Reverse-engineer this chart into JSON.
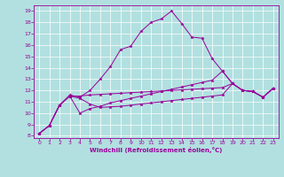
{
  "xlabel": "Windchill (Refroidissement éolien,°C)",
  "background_color": "#b2e0e0",
  "line_color": "#990099",
  "xlim": [
    -0.5,
    23.5
  ],
  "ylim": [
    7.8,
    19.5
  ],
  "yticks": [
    8,
    9,
    10,
    11,
    12,
    13,
    14,
    15,
    16,
    17,
    18,
    19
  ],
  "xticks": [
    0,
    1,
    2,
    3,
    4,
    5,
    6,
    7,
    8,
    9,
    10,
    11,
    12,
    13,
    14,
    15,
    16,
    17,
    18,
    19,
    20,
    21,
    22,
    23
  ],
  "series": [
    {
      "x": [
        0,
        1,
        2,
        3,
        4,
        5,
        6,
        7,
        8,
        9,
        10,
        11,
        12,
        13,
        14,
        15,
        16,
        17,
        18,
        19,
        20,
        21,
        22,
        23
      ],
      "y": [
        8.2,
        8.9,
        10.7,
        11.6,
        11.4,
        12.0,
        13.0,
        14.1,
        15.6,
        15.9,
        17.2,
        18.0,
        18.3,
        19.0,
        17.9,
        16.7,
        16.6,
        14.8,
        13.7,
        12.6,
        12.0,
        11.9,
        11.4,
        12.2
      ]
    },
    {
      "x": [
        0,
        1,
        2,
        3,
        4,
        5,
        6,
        7,
        8,
        9,
        10,
        11,
        12,
        13,
        14,
        15,
        16,
        17,
        18,
        19,
        20,
        21,
        22,
        23
      ],
      "y": [
        8.2,
        8.9,
        10.7,
        11.5,
        10.0,
        10.4,
        10.6,
        10.9,
        11.1,
        11.3,
        11.5,
        11.7,
        11.9,
        12.1,
        12.3,
        12.5,
        12.7,
        12.9,
        13.7,
        12.6,
        12.0,
        11.9,
        11.4,
        12.2
      ]
    },
    {
      "x": [
        0,
        1,
        2,
        3,
        4,
        5,
        6,
        7,
        8,
        9,
        10,
        11,
        12,
        13,
        14,
        15,
        16,
        17,
        18,
        19,
        20,
        21,
        22,
        23
      ],
      "y": [
        8.2,
        8.9,
        10.7,
        11.5,
        11.5,
        11.6,
        11.65,
        11.7,
        11.75,
        11.8,
        11.85,
        11.9,
        11.95,
        12.0,
        12.05,
        12.1,
        12.15,
        12.2,
        12.25,
        12.6,
        12.0,
        11.9,
        11.4,
        12.2
      ]
    },
    {
      "x": [
        0,
        1,
        2,
        3,
        4,
        5,
        6,
        7,
        8,
        9,
        10,
        11,
        12,
        13,
        14,
        15,
        16,
        17,
        18,
        19,
        20,
        21,
        22,
        23
      ],
      "y": [
        8.2,
        8.9,
        10.7,
        11.5,
        11.3,
        10.8,
        10.5,
        10.55,
        10.6,
        10.7,
        10.8,
        10.9,
        11.0,
        11.1,
        11.2,
        11.3,
        11.4,
        11.5,
        11.6,
        12.6,
        12.0,
        11.9,
        11.4,
        12.2
      ]
    }
  ]
}
